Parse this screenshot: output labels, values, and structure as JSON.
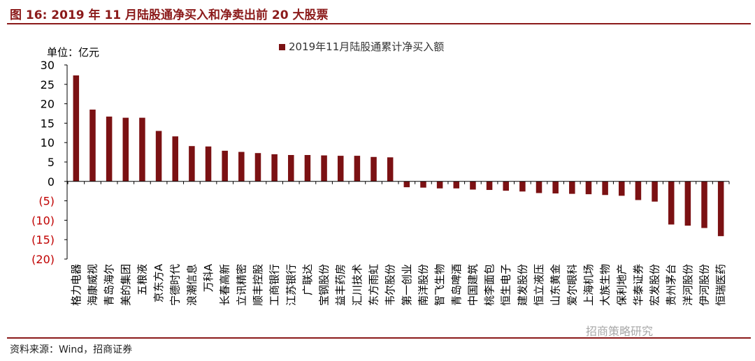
{
  "figure_title": "图 16:  2019 年 11 月陆股通净买入和净卖出前 20 大股票",
  "source": "资料来源：Wind，招商证券",
  "watermark": "招商策略研究",
  "colors": {
    "bar": "#7b1113",
    "negative_tick": "#c00000",
    "rule": "#8b1a1a"
  },
  "chart_data": {
    "type": "bar",
    "unit_label": "单位：亿元",
    "legend": {
      "label": "2019年11月陆股通累计净买入额",
      "position": "top-center"
    },
    "ylim": [
      -20,
      30
    ],
    "yticks": [
      {
        "v": 30,
        "label": "30"
      },
      {
        "v": 25,
        "label": "25"
      },
      {
        "v": 20,
        "label": "20"
      },
      {
        "v": 15,
        "label": "15"
      },
      {
        "v": 10,
        "label": "10"
      },
      {
        "v": 5,
        "label": "5"
      },
      {
        "v": 0,
        "label": "0"
      },
      {
        "v": -5,
        "label": "(5)"
      },
      {
        "v": -10,
        "label": "(10)"
      },
      {
        "v": -15,
        "label": "(15)"
      },
      {
        "v": -20,
        "label": "(20)"
      }
    ],
    "grid": false,
    "categories": [
      "格力电器",
      "海康威视",
      "青岛海尔",
      "美的集团",
      "五粮液",
      "京东方A",
      "宁德时代",
      "浪潮信息",
      "万科A",
      "长春高新",
      "立讯精密",
      "顺丰控股",
      "工商银行",
      "江苏银行",
      "广联达",
      "宝钢股份",
      "益丰药房",
      "汇川技术",
      "东方雨虹",
      "韦尔股份",
      "第一创业",
      "南洋股份",
      "智飞生物",
      "青岛啤酒",
      "中国建筑",
      "桃李面包",
      "恒生电子",
      "建发股份",
      "恒立液压",
      "山东黄金",
      "爱尔眼科",
      "上海机场",
      "大族生物",
      "保利地产",
      "华泰证券",
      "宏发股份",
      "贵州茅台",
      "洋河股份",
      "伊河股份",
      "恒瑞医药"
    ],
    "values": [
      27.3,
      18.5,
      16.7,
      16.4,
      16.4,
      13.0,
      11.6,
      9.1,
      9.0,
      7.9,
      7.6,
      7.3,
      7.0,
      6.8,
      6.8,
      6.7,
      6.6,
      6.6,
      6.3,
      6.2,
      -1.5,
      -1.6,
      -1.8,
      -1.8,
      -2.1,
      -2.2,
      -2.4,
      -2.6,
      -3.0,
      -3.1,
      -3.2,
      -3.3,
      -3.5,
      -3.7,
      -4.8,
      -5.2,
      -11.1,
      -11.4,
      -12.0,
      -14.1
    ]
  }
}
